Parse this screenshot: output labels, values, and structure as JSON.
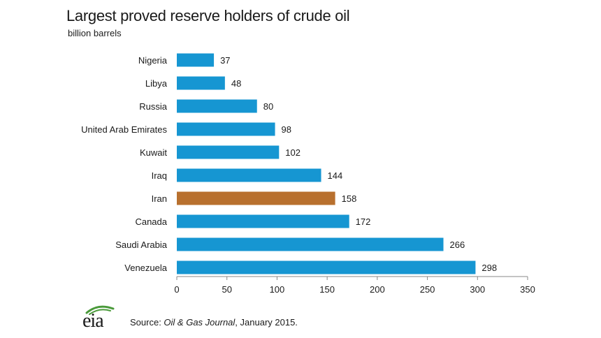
{
  "header": {
    "title": "Largest proved reserve holders of  crude oil",
    "subtitle": "billion barrels"
  },
  "footer": {
    "logo_text": "eia",
    "source_prefix": "Source: ",
    "source_journal": "Oil & Gas Journal",
    "source_suffix": ", January 2015."
  },
  "colors": {
    "bar": "#1696D2",
    "highlight": "#B8702E",
    "axis": "#888888",
    "logo_arc": "#4A9A3A"
  },
  "chart_data": {
    "type": "bar",
    "orientation": "horizontal",
    "title": "Largest proved reserve holders of  crude oil",
    "unit": "billion barrels",
    "categories": [
      "Nigeria",
      "Libya",
      "Russia",
      "United Arab Emirates",
      "Kuwait",
      "Iraq",
      "Iran",
      "Canada",
      "Saudi Arabia",
      "Venezuela"
    ],
    "values": [
      37,
      48,
      80,
      98,
      102,
      144,
      158,
      172,
      266,
      298
    ],
    "value_labels": [
      "37",
      "48",
      "80",
      "98",
      "102",
      "144",
      "158",
      "172",
      "266",
      "298"
    ],
    "highlight": "Iran",
    "xlim": [
      0,
      350
    ],
    "xticks": [
      0,
      50,
      100,
      150,
      200,
      250,
      300,
      350
    ],
    "grid": false,
    "legend": "none"
  }
}
